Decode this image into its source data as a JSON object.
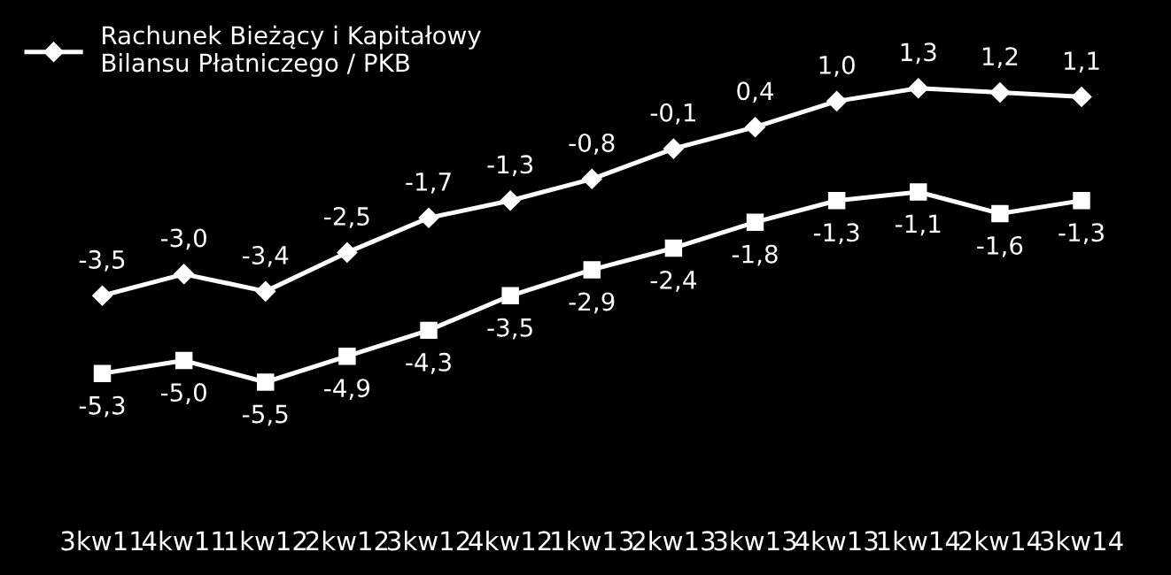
{
  "chart_data": {
    "type": "line",
    "categories": [
      "3kw11",
      "4kw11",
      "1kw12",
      "2kw12",
      "3kw12",
      "4kw12",
      "1kw13",
      "2kw13",
      "3kw13",
      "4kw13",
      "1kw14",
      "2kw14",
      "3kw14"
    ],
    "series": [
      {
        "name": "Rachunek Bieżący i Kapitałowy\nBilansu Płatniczego / PKB",
        "color": "#ffffff",
        "marker": "diamond",
        "values": [
          -3.5,
          -3.0,
          -3.4,
          -2.5,
          -1.7,
          -1.3,
          -0.8,
          -0.1,
          0.4,
          1.0,
          1.3,
          1.2,
          1.1
        ],
        "value_labels": [
          "-3,5",
          "-3,0",
          "-3,4",
          "-2,5",
          "-1,7",
          "-1,3",
          "-0,8",
          "-0,1",
          "0,4",
          "1,0",
          "1,3",
          "1,2",
          "1,1"
        ]
      },
      {
        "color": "#ffffff",
        "marker": "square",
        "values": [
          -5.3,
          -5.0,
          -5.5,
          -4.9,
          -4.3,
          -3.5,
          -2.9,
          -2.4,
          -1.8,
          -1.3,
          -1.1,
          -1.6,
          -1.3
        ],
        "value_labels": [
          "-5,3",
          "-5,0",
          "-5,5",
          "-4,9",
          "-4,3",
          "-3,5",
          "-2,9",
          "-2,4",
          "-1,8",
          "-1,3",
          "-1,1",
          "-1,6",
          "-1,3"
        ]
      }
    ],
    "legend": "top left",
    "grid": false
  }
}
